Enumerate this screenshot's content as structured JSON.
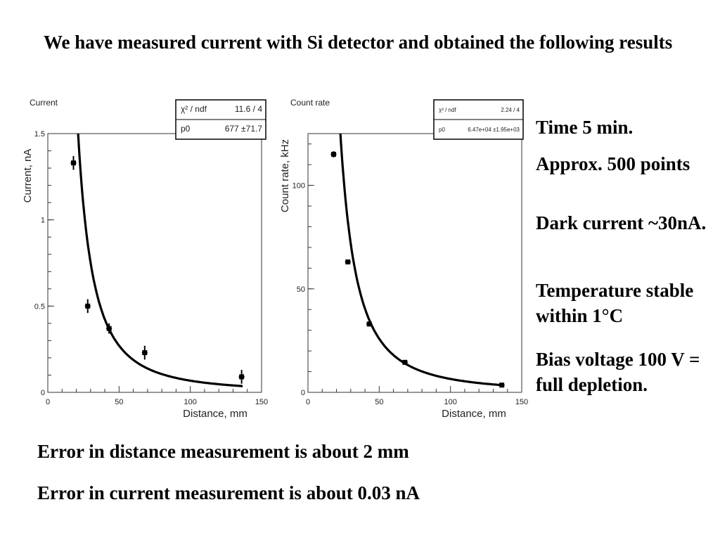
{
  "slide": {
    "title": "We have measured current with Si detector and obtained the following results",
    "notes": [
      "Time 5 min.",
      "Approx. 500 points",
      "Dark current ~30nA.",
      "Temperature stable within 1°C",
      "Bias voltage 100 V = full depletion."
    ],
    "error_distance": "Error in distance measurement is about 2 mm",
    "error_current": "Error in current measurement is about 0.03 nA"
  },
  "chart_data": [
    {
      "type": "scatter",
      "title": "Current",
      "xlabel": "Distance, mm",
      "ylabel": "Current, nA",
      "xlim": [
        0,
        150
      ],
      "ylim": [
        0,
        1.5
      ],
      "xticks": [
        0,
        50,
        100,
        150
      ],
      "yticks": [
        0,
        0.5,
        1,
        1.5
      ],
      "ytick_labels": [
        "0",
        "0.5",
        "1",
        "1.5"
      ],
      "points": [
        {
          "x": 18,
          "y": 1.33,
          "err": 0.04
        },
        {
          "x": 28,
          "y": 0.5,
          "err": 0.04
        },
        {
          "x": 43,
          "y": 0.37,
          "err": 0.03
        },
        {
          "x": 68,
          "y": 0.23,
          "err": 0.04
        },
        {
          "x": 136,
          "y": 0.09,
          "err": 0.04
        }
      ],
      "fit": {
        "model": "p0/x^2",
        "p0": 677
      },
      "stats_box": [
        {
          "label": "χ² / ndf",
          "value": "11.6 / 4"
        },
        {
          "label": "p0",
          "value": "677 ±71.7"
        }
      ]
    },
    {
      "type": "scatter",
      "title": "Count rate",
      "xlabel": "Distance, mm",
      "ylabel": "Count rate, kHz",
      "xlim": [
        0,
        150
      ],
      "ylim": [
        0,
        125
      ],
      "xticks": [
        0,
        50,
        100,
        150
      ],
      "yticks": [
        0,
        50,
        100
      ],
      "ytick_labels": [
        "0",
        "50",
        "100"
      ],
      "points": [
        {
          "x": 18,
          "y": 115,
          "err": 1.5
        },
        {
          "x": 28,
          "y": 63,
          "err": 1.2
        },
        {
          "x": 43,
          "y": 33,
          "err": 1
        },
        {
          "x": 68,
          "y": 14.5,
          "err": 0.8
        },
        {
          "x": 136,
          "y": 3.5,
          "err": 0.5
        }
      ],
      "fit": {
        "model": "p0/x^2",
        "p0": 64700
      },
      "stats_box": [
        {
          "label": "χ² / ndf",
          "value": "2.24 / 4"
        },
        {
          "label": "p0",
          "value": "6.47e+04 ±1.95e+03"
        }
      ]
    }
  ]
}
